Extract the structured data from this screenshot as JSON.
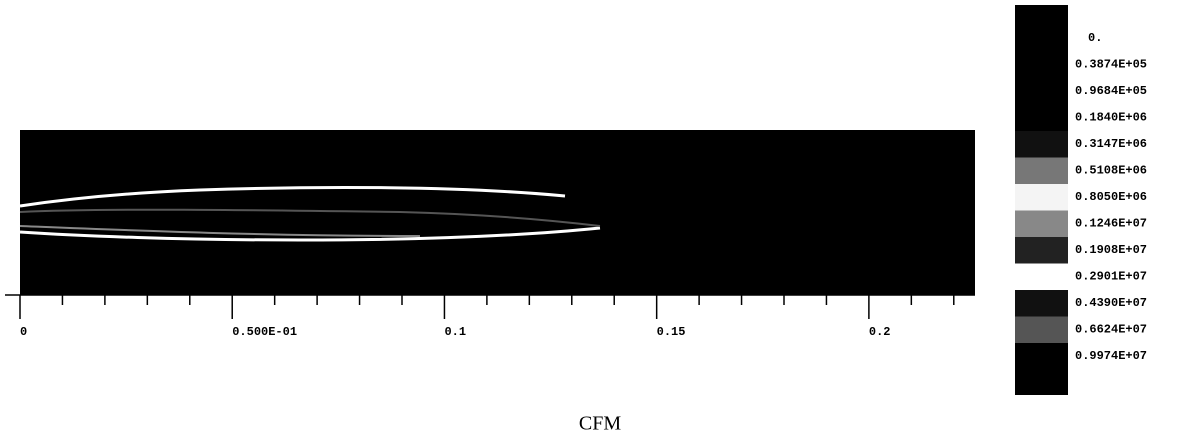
{
  "chart_data": {
    "type": "contour",
    "caption": "CFM",
    "xlim": [
      0,
      0.225
    ],
    "xticks": [
      0,
      {
        "value": 0.05,
        "label": "0.500E-01"
      },
      0.1,
      0.15,
      0.2
    ],
    "xminorticks": [
      0.01,
      0.02,
      0.03,
      0.04,
      0.06,
      0.07,
      0.08,
      0.09,
      0.11,
      0.12,
      0.13,
      0.14,
      0.16,
      0.17,
      0.18,
      0.19,
      0.21,
      0.22
    ],
    "levels": [
      {
        "value": 0,
        "label": "0."
      },
      {
        "value": 38740,
        "label": "0.3874E+05"
      },
      {
        "value": 96840,
        "label": "0.9684E+05"
      },
      {
        "value": 184000,
        "label": "0.1840E+06"
      },
      {
        "value": 314700,
        "label": "0.3147E+06"
      },
      {
        "value": 510800,
        "label": "0.5108E+06"
      },
      {
        "value": 805000,
        "label": "0.8050E+06"
      },
      {
        "value": 1246000,
        "label": "0.1246E+07"
      },
      {
        "value": 1908000,
        "label": "0.1908E+07"
      },
      {
        "value": 2901000,
        "label": "0.2901E+07"
      },
      {
        "value": 4390000,
        "label": "0.4390E+07"
      },
      {
        "value": 6624000,
        "label": "0.6624E+07"
      },
      {
        "value": 9974000,
        "label": "0.9974E+07"
      }
    ],
    "level_colors": [
      "#000000",
      "#000000",
      "#000000",
      "#000000",
      "#111111",
      "#777777",
      "#f4f4f4",
      "#888888",
      "#222222",
      "#ffffff",
      "#111111",
      "#555555",
      "#000000"
    ]
  }
}
